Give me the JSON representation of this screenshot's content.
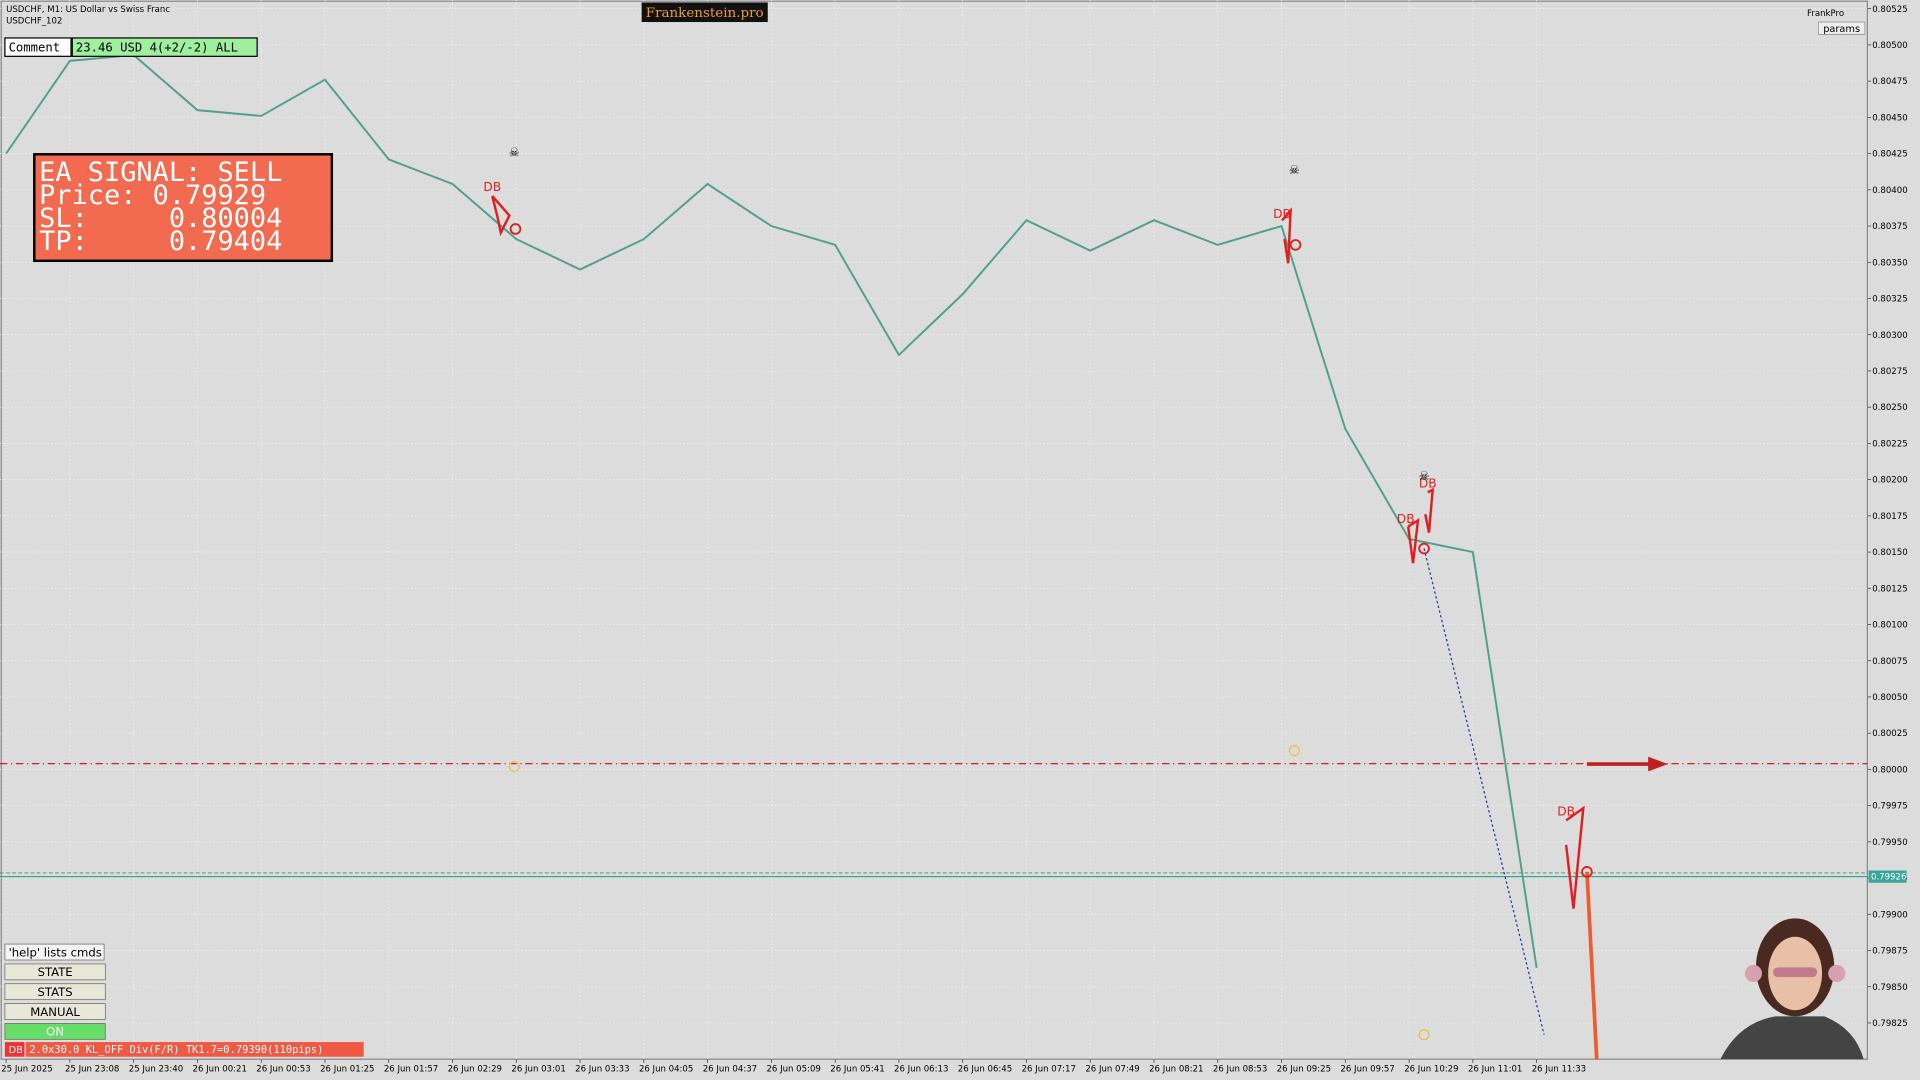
{
  "header": {
    "symbol": "USDCHF, M1:  US Dollar vs Swiss Franc",
    "subtitle": "USDCHF_102",
    "brand": "Frankenstein.pro",
    "user": "FrankPro",
    "params": "params"
  },
  "comment": {
    "label": "Comment",
    "value": "23.46 USD 4(+2/-2) ALL"
  },
  "signal": {
    "lines": [
      "EA SIGNAL: SELL",
      "Price: 0.79929",
      "SL:     0.80004",
      "TP:     0.79404"
    ]
  },
  "buttons": [
    "'help' lists cmds",
    "STATE",
    "STATS",
    "MANUAL",
    "ON"
  ],
  "status": {
    "tag": "DB",
    "text": "2.0x30.0 KL_OFF Div(F/R) TK1.7=0.79390(110pips)"
  },
  "chart_data": {
    "type": "line",
    "color": "#4fa08c",
    "categories": [
      "25 Jun 2025",
      "25 Jun 23:08",
      "25 Jun 23:40",
      "26 Jun 00:21",
      "26 Jun 00:53",
      "26 Jun 01:25",
      "26 Jun 01:57",
      "26 Jun 02:29",
      "26 Jun 03:01",
      "26 Jun 03:33",
      "26 Jun 04:05",
      "26 Jun 04:37",
      "26 Jun 05:09",
      "26 Jun 05:41",
      "26 Jun 06:13",
      "26 Jun 06:45",
      "26 Jun 07:17",
      "26 Jun 07:49",
      "26 Jun 08:21",
      "26 Jun 08:53",
      "26 Jun 09:25",
      "26 Jun 09:57",
      "26 Jun 10:29",
      "26 Jun 11:01",
      "26 Jun 11:33"
    ],
    "values": [
      0.80425,
      0.80489,
      0.80493,
      0.80455,
      0.80451,
      0.80476,
      0.80421,
      0.80404,
      0.80366,
      0.80345,
      0.80366,
      0.80404,
      0.80375,
      0.80362,
      0.80286,
      0.80328,
      0.80379,
      0.80358,
      0.80379,
      0.80362,
      0.80375,
      0.80235,
      0.80159,
      0.8015,
      0.79863
    ],
    "ylim": [
      0.798,
      0.80531
    ],
    "yticks": [
      {
        "value": 0.80525,
        "label": "0.80525"
      },
      {
        "value": 0.805,
        "label": "0.80500"
      },
      {
        "value": 0.80475,
        "label": "0.80475"
      },
      {
        "value": 0.8045,
        "label": "0.80450"
      },
      {
        "value": 0.80425,
        "label": "0.80425"
      },
      {
        "value": 0.804,
        "label": "0.80400"
      },
      {
        "value": 0.80375,
        "label": "0.80375"
      },
      {
        "value": 0.8035,
        "label": "0.80350"
      },
      {
        "value": 0.80325,
        "label": "0.80325"
      },
      {
        "value": 0.803,
        "label": "0.80300"
      },
      {
        "value": 0.80275,
        "label": "0.80275"
      },
      {
        "value": 0.8025,
        "label": "0.80250"
      },
      {
        "value": 0.80225,
        "label": "0.80225"
      },
      {
        "value": 0.802,
        "label": "0.80200"
      },
      {
        "value": 0.80175,
        "label": "0.80175"
      },
      {
        "value": 0.8015,
        "label": "0.80150"
      },
      {
        "value": 0.80125,
        "label": "0.80125"
      },
      {
        "value": 0.801,
        "label": "0.80100"
      },
      {
        "value": 0.80075,
        "label": "0.80075"
      },
      {
        "value": 0.8005,
        "label": "0.80050"
      },
      {
        "value": 0.80025,
        "label": "0.80025"
      },
      {
        "value": 0.8,
        "label": "0.80000"
      },
      {
        "value": 0.79975,
        "label": "0.79975"
      },
      {
        "value": 0.7995,
        "label": "0.79950"
      },
      {
        "value": 0.79925,
        "label": "0.79925"
      },
      {
        "value": 0.799,
        "label": "0.79900"
      },
      {
        "value": 0.79875,
        "label": "0.79875"
      },
      {
        "value": 0.7985,
        "label": "0.79850"
      },
      {
        "value": 0.79825,
        "label": "0.79825"
      }
    ],
    "current_price": {
      "value": 0.79926,
      "label": "0.79926"
    },
    "sl_line": 0.80004,
    "grid": true,
    "annotations": [
      "DB",
      "DB",
      "DB",
      "DB",
      "DB"
    ]
  }
}
